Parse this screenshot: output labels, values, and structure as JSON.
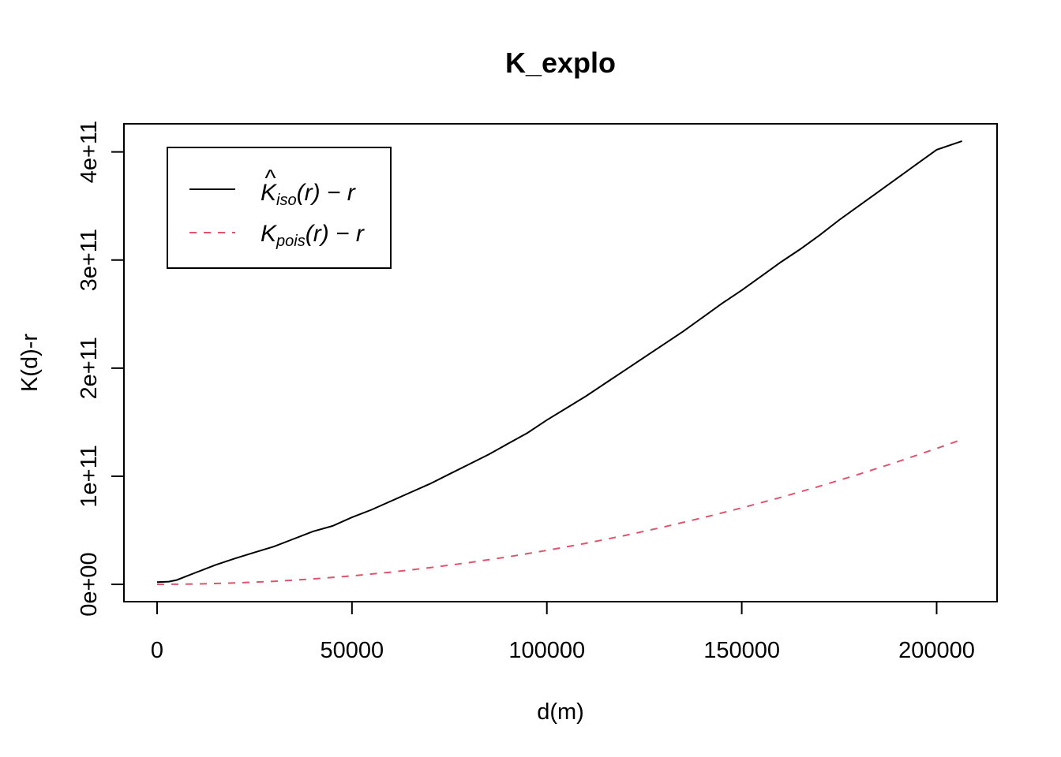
{
  "chart_data": {
    "type": "line",
    "title": "K_explo",
    "xlabel": "d(m)",
    "ylabel": "K(d)-r",
    "xlim": [
      -8500,
      215500
    ],
    "ylim": [
      -16000000000.0,
      426000000000.0
    ],
    "x_ticks": [
      0,
      50000,
      100000,
      150000,
      200000
    ],
    "x_tick_labels": [
      "0",
      "50000",
      "100000",
      "150000",
      "200000"
    ],
    "y_ticks": [
      0,
      100000000000.0,
      200000000000.0,
      300000000000.0,
      400000000000.0
    ],
    "y_tick_labels": [
      "0e+00",
      "1e+11",
      "2e+11",
      "3e+11",
      "4e+11"
    ],
    "legend_position": "top-left",
    "series": [
      {
        "name": "K̂iso(r) − r",
        "color": "#000000",
        "dash": "solid",
        "x": [
          0,
          3000,
          5000,
          10000,
          15000,
          20000,
          25000,
          30000,
          35000,
          40000,
          45000,
          50000,
          55000,
          60000,
          65000,
          70000,
          75000,
          80000,
          85000,
          90000,
          95000,
          100000,
          105000,
          110000,
          115000,
          120000,
          125000,
          130000,
          135000,
          140000,
          145000,
          150000,
          155000,
          160000,
          165000,
          170000,
          175000,
          180000,
          185000,
          190000,
          195000,
          200000,
          206500
        ],
        "y": [
          2000000000.0,
          2500000000.0,
          4000000000.0,
          11000000000.0,
          18000000000.0,
          24000000000.0,
          29500000000.0,
          35000000000.0,
          42000000000.0,
          49000000000.0,
          54000000000.0,
          62000000000.0,
          69000000000.0,
          77000000000.0,
          85000000000.0,
          93000000000.0,
          102000000000.0,
          111000000000.0,
          120000000000.0,
          130000000000.0,
          140000000000.0,
          152000000000.0,
          163000000000.0,
          174000000000.0,
          186000000000.0,
          198000000000.0,
          210000000000.0,
          222000000000.0,
          234000000000.0,
          247000000000.0,
          260000000000.0,
          272000000000.0,
          285000000000.0,
          298000000000.0,
          310000000000.0,
          323000000000.0,
          337000000000.0,
          350000000000.0,
          363000000000.0,
          376000000000.0,
          389000000000.0,
          402000000000.0,
          410000000000.0
        ]
      },
      {
        "name": "Kpois(r) − r",
        "color": "#DF536B",
        "dash": "dashed",
        "x": [
          0,
          10000,
          20000,
          30000,
          40000,
          50000,
          60000,
          70000,
          80000,
          90000,
          100000,
          110000,
          120000,
          130000,
          140000,
          150000,
          160000,
          170000,
          180000,
          190000,
          200000,
          206500
        ],
        "y": [
          0,
          310000000.0,
          1260000000.0,
          2830000000.0,
          5030000000.0,
          7850000000.0,
          11300000000.0,
          15400000000.0,
          20100000000.0,
          25400000000.0,
          31400000000.0,
          38000000000.0,
          45200000000.0,
          53100000000.0,
          61600000000.0,
          70700000000.0,
          80400000000.0,
          90800000000.0,
          101800000000.0,
          113400000000.0,
          125700000000.0,
          134000000000.0
        ]
      }
    ],
    "legend": {
      "entries": [
        {
          "base": "K",
          "hat": "^",
          "sub": "iso",
          "rest": "(r) − r"
        },
        {
          "base": "K",
          "hat": "",
          "sub": "pois",
          "rest": "(r) − r"
        }
      ]
    }
  }
}
